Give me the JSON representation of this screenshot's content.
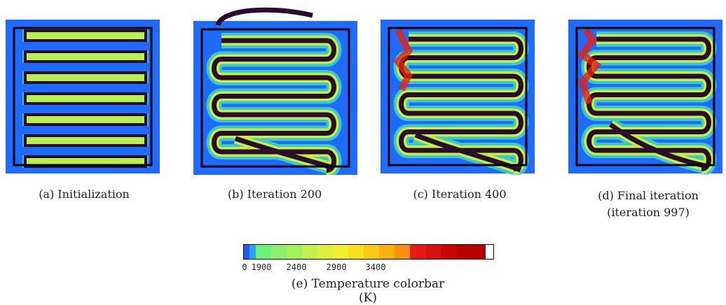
{
  "panels": [
    {
      "caption": "(a) Initialization"
    },
    {
      "caption": "(b) Iteration 200"
    },
    {
      "caption": "(c) Iteration 400"
    },
    {
      "caption": [
        "(d) Final iteration",
        "(iteration 997)"
      ]
    }
  ],
  "colorbar": {
    "ticks": [
      "0",
      "1900",
      "2400",
      "2900",
      "3400"
    ],
    "caption": "(e) Temperature colorbar (K)"
  }
}
